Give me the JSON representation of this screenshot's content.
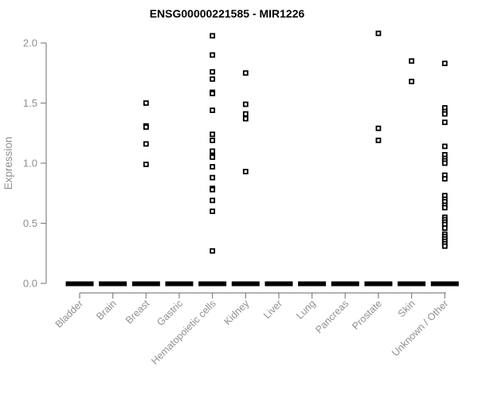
{
  "chart_data": {
    "type": "scatter",
    "title": "ENSG00000221585 - MIR1226",
    "xlabel": "",
    "ylabel": "Expression",
    "ylim": [
      0.0,
      2.0
    ],
    "yticks": [
      0.0,
      0.5,
      1.0,
      1.5,
      2.0
    ],
    "ytick_labels": [
      "0.0",
      "0.5",
      "1.0",
      "1.5",
      "2.0"
    ],
    "grid": false,
    "legend": "none",
    "marker": "open-square",
    "zero_cluster_note": "every category has a dense cluster of samples at expression 0, drawn as a thick black horizontal dash",
    "categories": [
      {
        "label": "Bladder",
        "values": [],
        "zero_bar": true
      },
      {
        "label": "Brain",
        "values": [],
        "zero_bar": true
      },
      {
        "label": "Breast",
        "values": [
          1.5,
          1.31,
          1.3,
          1.16,
          0.99
        ],
        "zero_bar": true
      },
      {
        "label": "Gastric",
        "values": [],
        "zero_bar": true
      },
      {
        "label": "Hematopoietic cells",
        "values": [
          2.06,
          1.9,
          1.76,
          1.7,
          1.59,
          1.58,
          1.44,
          1.24,
          1.19,
          1.1,
          1.06,
          1.05,
          0.97,
          0.88,
          0.79,
          0.78,
          0.69,
          0.6,
          0.27
        ],
        "zero_bar": true
      },
      {
        "label": "Kidney",
        "values": [
          1.75,
          1.49,
          1.41,
          1.37,
          0.93
        ],
        "zero_bar": true
      },
      {
        "label": "Liver",
        "values": [],
        "zero_bar": true
      },
      {
        "label": "Lung",
        "values": [],
        "zero_bar": true
      },
      {
        "label": "Pancreas",
        "values": [],
        "zero_bar": true
      },
      {
        "label": "Prostate",
        "values": [
          2.08,
          1.29,
          1.19
        ],
        "zero_bar": true
      },
      {
        "label": "Skin",
        "values": [
          1.85,
          1.68
        ],
        "zero_bar": true
      },
      {
        "label": "Unknown / Other",
        "values": [
          1.83,
          1.46,
          1.43,
          1.41,
          1.34,
          1.14,
          1.07,
          1.04,
          1.02,
          1.0,
          0.9,
          0.87,
          0.73,
          0.7,
          0.68,
          0.65,
          0.63,
          0.55,
          0.53,
          0.51,
          0.49,
          0.46,
          0.41,
          0.39,
          0.37,
          0.35,
          0.33,
          0.31
        ],
        "zero_bar": true
      }
    ],
    "colors": {
      "point": "#000000",
      "point_fill": "#ffffff",
      "zero_bar": "#000000",
      "axis_line": "#858585",
      "tick_text": "#909090",
      "axis_label_text": "#909090",
      "title": "#000000",
      "background": "#ffffff"
    }
  }
}
